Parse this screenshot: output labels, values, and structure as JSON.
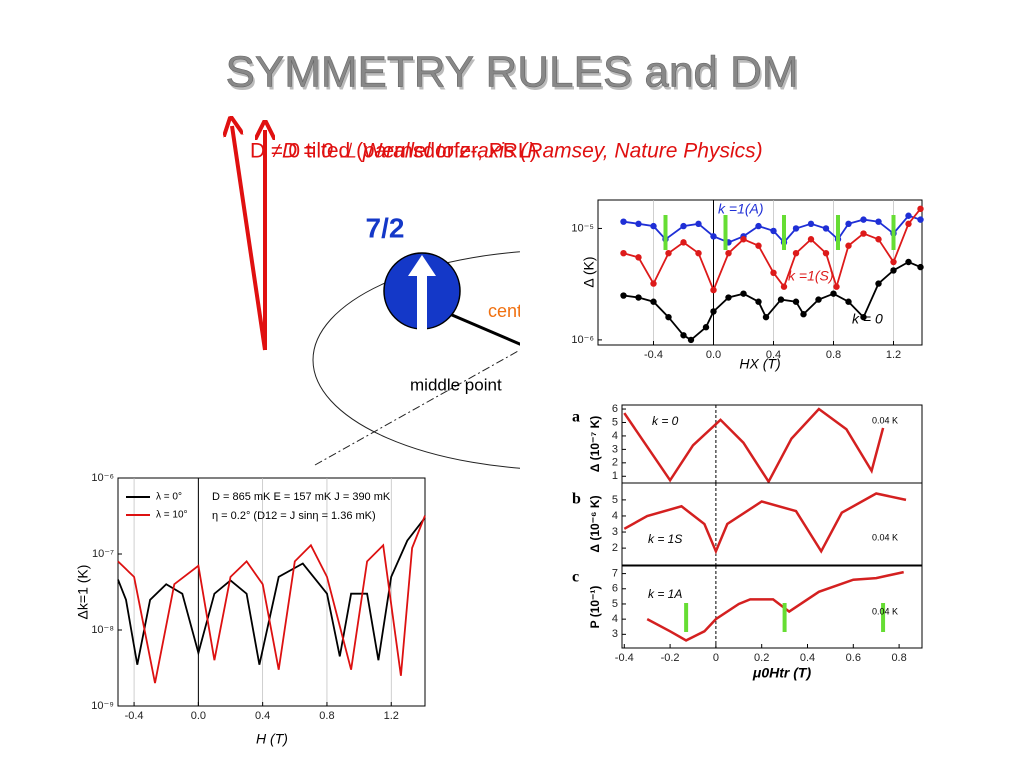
{
  "header": {
    "title": "SYMMETRY RULES and DM",
    "line_a": "D ≠ 0 tilted (Wernsdorfer, PRL)",
    "line_b": "D = 0 ⊥ parallel to z-axis (Ramsey, Nature Physics)"
  },
  "diagram": {
    "spin": "7/2",
    "center": "center",
    "middle": "middle point"
  },
  "chart_data": [
    {
      "type": "line",
      "log_y": true,
      "grid": true,
      "xlim": [
        -0.77,
        1.39
      ],
      "ylim": [
        9e-07,
        1.8e-05
      ],
      "xticks": [
        -0.4,
        0.0,
        0.4,
        0.8,
        1.2
      ],
      "xtick_labels": [
        "-0.4",
        "0.0",
        "0.4",
        "0.8",
        "1.2"
      ],
      "yticks": [
        {
          "value": 1e-05,
          "label": "10⁻⁵"
        },
        {
          "value": 1e-06,
          "label": "10⁻⁶"
        }
      ],
      "xlabel": "HX (T)",
      "ylabel": "Δ (K)",
      "markers": [
        -0.32,
        0.08,
        0.47,
        0.83,
        1.2
      ],
      "marker_color": "#66dd33",
      "series": [
        {
          "name": "k =1(A)",
          "color": "#1f2fd6",
          "x": [
            -0.6,
            -0.5,
            -0.4,
            -0.32,
            -0.2,
            -0.1,
            0.0,
            0.1,
            0.2,
            0.3,
            0.4,
            0.47,
            0.55,
            0.65,
            0.75,
            0.83,
            0.9,
            1.0,
            1.1,
            1.2,
            1.3,
            1.38
          ],
          "values": [
            1.15e-05,
            1.1e-05,
            1.05e-05,
            8e-06,
            1.05e-05,
            1.1e-05,
            8.5e-06,
            7.5e-06,
            8.5e-06,
            1.05e-05,
            9.5e-06,
            7.5e-06,
            1e-05,
            1.1e-05,
            1e-05,
            8e-06,
            1.1e-05,
            1.2e-05,
            1.15e-05,
            9e-06,
            1.3e-05,
            1.2e-05
          ]
        },
        {
          "name": "k =1(S)",
          "color": "#dd1a1a",
          "x": [
            -0.6,
            -0.5,
            -0.4,
            -0.3,
            -0.2,
            -0.1,
            0.0,
            0.1,
            0.2,
            0.3,
            0.4,
            0.47,
            0.55,
            0.65,
            0.75,
            0.82,
            0.9,
            1.0,
            1.1,
            1.2,
            1.3,
            1.38
          ],
          "values": [
            6e-06,
            5.5e-06,
            3.2e-06,
            6e-06,
            7.5e-06,
            6e-06,
            2.8e-06,
            6e-06,
            8e-06,
            7e-06,
            4e-06,
            3e-06,
            6e-06,
            8e-06,
            6e-06,
            3e-06,
            7e-06,
            9e-06,
            8e-06,
            5e-06,
            1.1e-05,
            1.5e-05
          ]
        },
        {
          "name": "k = 0",
          "color": "#000000",
          "x": [
            -0.6,
            -0.5,
            -0.4,
            -0.3,
            -0.2,
            -0.15,
            -0.05,
            0.0,
            0.1,
            0.2,
            0.3,
            0.35,
            0.45,
            0.55,
            0.6,
            0.7,
            0.8,
            0.9,
            1.0,
            1.1,
            1.2,
            1.3,
            1.38
          ],
          "values": [
            2.5e-06,
            2.4e-06,
            2.2e-06,
            1.6e-06,
            1.1e-06,
            1e-06,
            1.3e-06,
            1.8e-06,
            2.4e-06,
            2.6e-06,
            2.2e-06,
            1.6e-06,
            2.3e-06,
            2.2e-06,
            1.7e-06,
            2.3e-06,
            2.6e-06,
            2.2e-06,
            1.6e-06,
            3.2e-06,
            4.2e-06,
            5e-06,
            4.5e-06
          ]
        }
      ]
    },
    {
      "type": "line",
      "log_y": true,
      "grid": true,
      "xlim": [
        -0.5,
        1.41
      ],
      "ylim": [
        1e-09,
        1e-06
      ],
      "xticks": [
        -0.4,
        0.0,
        0.4,
        0.8,
        1.2
      ],
      "xtick_labels": [
        "-0.4",
        "0.0",
        "0.4",
        "0.8",
        "1.2"
      ],
      "yticks": [
        {
          "value": 1e-06,
          "label": "10⁻⁶"
        },
        {
          "value": 1e-07,
          "label": "10⁻⁷"
        },
        {
          "value": 1e-08,
          "label": "10⁻⁸"
        },
        {
          "value": 1e-09,
          "label": "10⁻⁹"
        }
      ],
      "xlabel": "H (T)",
      "ylabel": "Δk=1 (K)",
      "annotations": [
        "D = 865 mK   E = 157 mK   J = 390 mK",
        "η = 0.2°  (D12 = J sinη = 1.36 mK)"
      ],
      "series": [
        {
          "name": "λ = 0°",
          "color": "#000000",
          "x": [
            -0.5,
            -0.45,
            -0.38,
            -0.3,
            -0.2,
            -0.1,
            0.0,
            0.1,
            0.2,
            0.3,
            0.38,
            0.5,
            0.65,
            0.8,
            0.88,
            0.95,
            1.05,
            1.12,
            1.2,
            1.3,
            1.41
          ],
          "values": [
            4.6e-08,
            2.5e-08,
            3.5e-09,
            2.5e-08,
            4e-08,
            3e-08,
            5e-09,
            3e-08,
            4.5e-08,
            3e-08,
            3.5e-09,
            5e-08,
            7.5e-08,
            3e-08,
            4.5e-09,
            3e-08,
            3e-08,
            4e-09,
            5e-08,
            1.5e-07,
            3e-07
          ]
        },
        {
          "name": "λ = 10°",
          "color": "#dd1111",
          "x": [
            -0.5,
            -0.4,
            -0.27,
            -0.15,
            0.0,
            0.1,
            0.2,
            0.3,
            0.4,
            0.5,
            0.6,
            0.7,
            0.8,
            0.95,
            1.05,
            1.15,
            1.26,
            1.33,
            1.41
          ],
          "values": [
            8e-08,
            5e-08,
            2e-09,
            4e-08,
            7e-08,
            4e-09,
            5e-08,
            8e-08,
            4e-08,
            3e-09,
            8e-08,
            1.3e-07,
            5e-08,
            3e-09,
            8e-08,
            1.3e-07,
            2.5e-09,
            1.2e-07,
            3.2e-07
          ]
        }
      ]
    },
    {
      "type": "line",
      "label": "a",
      "note": "0.04 K",
      "xlim": [
        -0.41,
        0.9
      ],
      "ylim": [
        0.5,
        6.3
      ],
      "yticks": [
        1,
        2,
        3,
        4,
        5,
        6
      ],
      "ylabel": "Δ (10⁻⁷ K)",
      "series": [
        {
          "name": "k = 0",
          "color": "#d42020",
          "x": [
            -0.4,
            -0.3,
            -0.2,
            -0.1,
            0.02,
            0.12,
            0.23,
            0.33,
            0.45,
            0.57,
            0.68,
            0.73
          ],
          "values": [
            5.7,
            3.2,
            0.7,
            3.3,
            5.2,
            3.5,
            0.6,
            3.8,
            6.0,
            4.5,
            1.4,
            4.6
          ]
        }
      ]
    },
    {
      "type": "line",
      "label": "b",
      "note": "0.04 K",
      "xlim": [
        -0.41,
        0.9
      ],
      "ylim": [
        0.95,
        6.05
      ],
      "yticks": [
        2,
        3,
        4,
        5
      ],
      "ylabel": "Δ (10⁻⁶ K)",
      "series": [
        {
          "name": "k = 1S",
          "color": "#d42020",
          "x": [
            -0.4,
            -0.3,
            -0.15,
            -0.05,
            0.0,
            0.05,
            0.2,
            0.35,
            0.46,
            0.55,
            0.7,
            0.83
          ],
          "values": [
            3.2,
            4.0,
            4.6,
            3.5,
            1.8,
            3.5,
            4.9,
            4.3,
            1.8,
            4.2,
            5.4,
            5.0
          ]
        }
      ]
    },
    {
      "type": "line",
      "label": "c",
      "note": "0.04 K",
      "xlim": [
        -0.41,
        0.9
      ],
      "ylim": [
        2.1,
        7.5
      ],
      "yticks": [
        3,
        4,
        5,
        6,
        7
      ],
      "ylabel": "P (10⁻¹)",
      "xlabel": "μ0Htr (T)",
      "xticks": [
        -0.4,
        -0.2,
        0,
        0.2,
        0.4,
        0.6,
        0.8
      ],
      "markers": [
        -0.13,
        0.3,
        0.73
      ],
      "marker_color": "#66dd33",
      "series": [
        {
          "name": "k = 1A",
          "color": "#d42020",
          "x": [
            -0.3,
            -0.2,
            -0.13,
            -0.05,
            0.0,
            0.1,
            0.15,
            0.25,
            0.32,
            0.45,
            0.6,
            0.7,
            0.82
          ],
          "values": [
            4.0,
            3.2,
            2.6,
            3.2,
            4.0,
            5.0,
            5.3,
            5.3,
            4.5,
            5.8,
            6.6,
            6.7,
            7.1
          ]
        }
      ]
    }
  ]
}
